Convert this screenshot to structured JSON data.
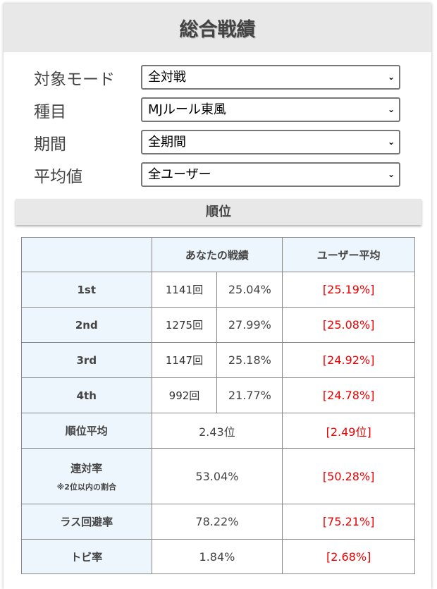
{
  "title": "総合戦績",
  "filters": [
    {
      "label": "対象モード",
      "value": "全対戦"
    },
    {
      "label": "種目",
      "value": "MJルール東風"
    },
    {
      "label": "期間",
      "value": "全期間"
    },
    {
      "label": "平均値",
      "value": "全ユーザー"
    }
  ],
  "section": "順位",
  "table": {
    "headers": [
      "",
      "あなたの戦績",
      "ユーザー平均"
    ],
    "rank_rows": [
      {
        "label": "1st",
        "count": "1141回",
        "pct": "25.04%",
        "avg": "[25.19%]"
      },
      {
        "label": "2nd",
        "count": "1275回",
        "pct": "27.99%",
        "avg": "[25.08%]"
      },
      {
        "label": "3rd",
        "count": "1147回",
        "pct": "25.18%",
        "avg": "[24.92%]"
      },
      {
        "label": "4th",
        "count": "992回",
        "pct": "21.77%",
        "avg": "[24.78%]"
      }
    ],
    "stat_rows": [
      {
        "label": "順位平均",
        "value": "2.43位",
        "avg": "[2.49位]"
      },
      {
        "label": "連対率",
        "note": "※2位以内の割合",
        "value": "53.04%",
        "avg": "[50.28%]"
      },
      {
        "label": "ラス回避率",
        "value": "78.22%",
        "avg": "[75.21%]"
      },
      {
        "label": "トビ率",
        "value": "1.84%",
        "avg": "[2.68%]"
      }
    ]
  },
  "colors": {
    "accent_red": "#ee0000",
    "header_bg": "#e8e8e8",
    "label_cell_bg": "#eef6fd"
  }
}
